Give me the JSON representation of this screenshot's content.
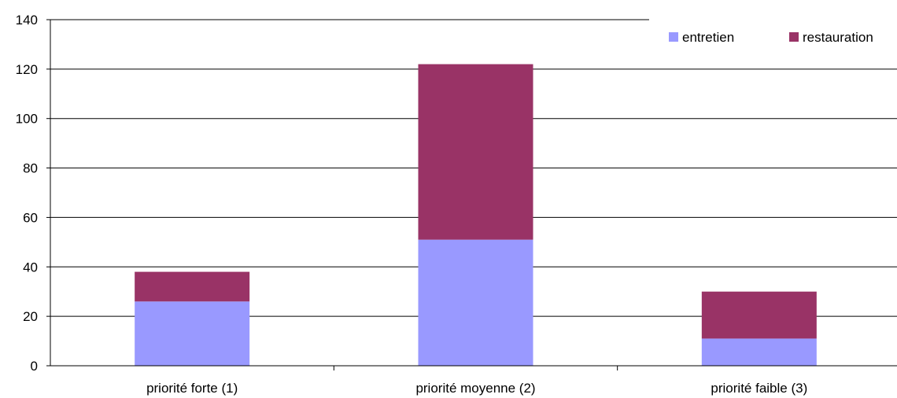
{
  "chart_data": {
    "type": "bar",
    "stacked": true,
    "categories": [
      "priorité forte (1)",
      "priorité moyenne (2)",
      "priorité faible (3)"
    ],
    "series": [
      {
        "name": "entretien",
        "values": [
          26,
          51,
          11
        ],
        "color": "#9999ff"
      },
      {
        "name": "restauration",
        "values": [
          12,
          71,
          19
        ],
        "color": "#993366"
      }
    ],
    "title": "",
    "xlabel": "",
    "ylabel": "",
    "ylim": [
      0,
      140
    ],
    "yticks": [
      0,
      20,
      40,
      60,
      80,
      100,
      120,
      140
    ],
    "grid": true,
    "legend_position": "top-right"
  }
}
